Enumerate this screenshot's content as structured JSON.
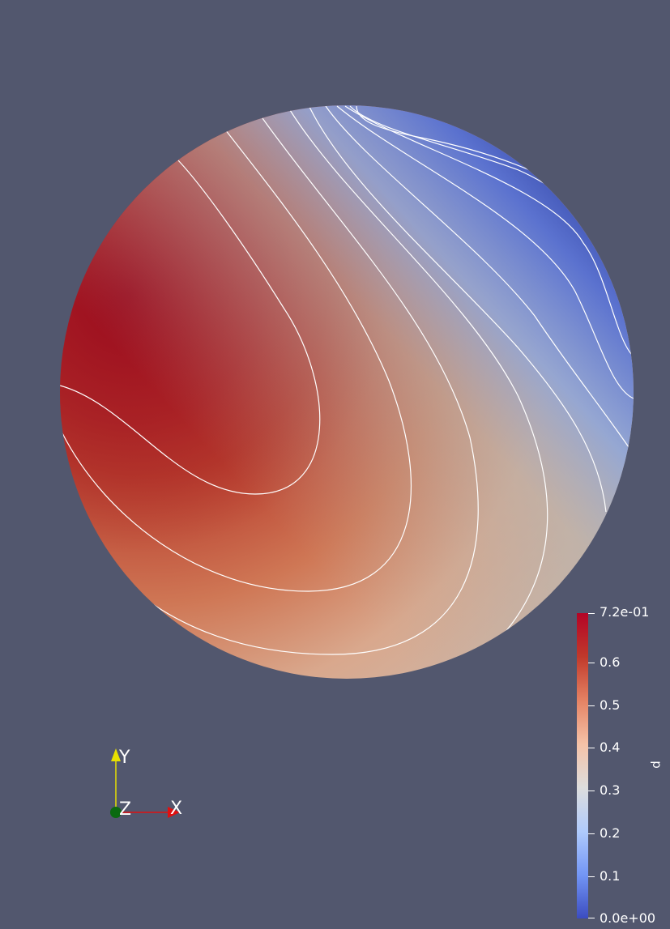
{
  "scalar_bar": {
    "title": "p",
    "labels": [
      "7.2e-01",
      "0.6",
      "0.5",
      "0.4",
      "0.3",
      "0.2",
      "0.1",
      "0.0e+00"
    ],
    "range": [
      0.0,
      0.72
    ],
    "colormap": [
      "#3b4cc0",
      "#7396f5",
      "#b0cbfc",
      "#dddddd",
      "#f5c2a7",
      "#e58263",
      "#c0392b",
      "#b40426"
    ]
  },
  "orientation_axes": {
    "x_label": "X",
    "y_label": "Y",
    "z_label": "Z",
    "x_color": "#e01010",
    "y_color": "#e8e000",
    "z_color": "#0a6a10"
  },
  "colors": {
    "background": "#52576e",
    "contour": "#ffffff"
  }
}
